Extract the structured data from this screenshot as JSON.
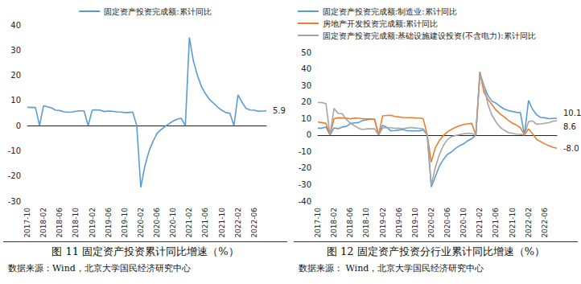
{
  "chart_data": [
    {
      "type": "line",
      "title": "图 11  固定资产投资累计同比增速（%）",
      "source": "数据来源：Wind，北京大学国民经济研究中心",
      "categories": [
        "2017-10",
        null,
        null,
        null,
        "2018-02",
        null,
        null,
        null,
        "2018-06",
        null,
        null,
        null,
        "2018-10",
        null,
        null,
        null,
        "2019-02",
        null,
        null,
        null,
        "2019-06",
        null,
        null,
        null,
        "2019-10",
        null,
        null,
        null,
        "2020-02",
        null,
        null,
        null,
        "2020-06",
        null,
        null,
        null,
        "2020-10",
        null,
        null,
        null,
        "2021-02",
        null,
        null,
        null,
        "2021-06",
        null,
        null,
        null,
        "2021-10",
        null,
        null,
        null,
        "2022-02",
        null,
        null,
        null,
        "2022-06",
        null,
        null,
        null
      ],
      "series": [
        {
          "name": "固定资产投资完成额:累计同比",
          "color": "#5b9bd5",
          "values": [
            7.3,
            7.2,
            7.2,
            0,
            7.9,
            7.5,
            7.0,
            6.1,
            6.0,
            5.5,
            5.3,
            5.4,
            5.7,
            5.9,
            5.9,
            0,
            6.1,
            6.3,
            6.1,
            5.6,
            5.8,
            5.7,
            5.5,
            5.4,
            5.2,
            5.2,
            5.4,
            0,
            -24.5,
            -16.1,
            -10.3,
            -6.3,
            -3.1,
            -1.6,
            -0.3,
            0.8,
            1.8,
            2.6,
            2.9,
            0,
            35.0,
            25.6,
            19.9,
            15.4,
            12.6,
            10.3,
            8.9,
            7.3,
            6.1,
            5.2,
            4.9,
            0,
            12.2,
            9.3,
            6.8,
            6.2,
            6.1,
            5.7,
            5.8,
            5.9
          ],
          "value_labels": [
            null,
            null,
            null,
            null,
            null,
            null,
            null,
            null,
            null,
            null,
            null,
            null,
            null,
            null,
            null,
            null,
            null,
            null,
            null,
            null,
            null,
            null,
            null,
            null,
            null,
            null,
            null,
            null,
            null,
            null,
            null,
            null,
            null,
            null,
            null,
            null,
            null,
            null,
            null,
            null,
            null,
            null,
            null,
            null,
            null,
            null,
            null,
            null,
            null,
            null,
            null,
            null,
            null,
            null,
            null,
            null,
            null,
            null,
            null,
            "5.9"
          ]
        }
      ],
      "ylim": [
        -30,
        40
      ],
      "yticks": [
        -30,
        -20,
        -10,
        0,
        10,
        20,
        30,
        40
      ],
      "grid": false,
      "legend": "top"
    },
    {
      "type": "line",
      "title": "图 12  固定资产投资分行业累计同比增速（%）",
      "source": "数据来源：  Wind，北京大学国民经济研究中心",
      "categories": [
        "2017-10",
        null,
        null,
        null,
        "2018-02",
        null,
        null,
        null,
        "2018-06",
        null,
        null,
        null,
        "2018-10",
        null,
        null,
        null,
        "2019-02",
        null,
        null,
        null,
        "2019-06",
        null,
        null,
        null,
        "2019-10",
        null,
        null,
        null,
        "2020-02",
        null,
        null,
        null,
        "2020-06",
        null,
        null,
        null,
        "2020-10",
        null,
        null,
        null,
        "2021-02",
        null,
        null,
        null,
        "2021-06",
        null,
        null,
        null,
        "2021-10",
        null,
        null,
        null,
        "2022-02",
        null,
        null,
        null,
        "2022-06",
        null,
        null,
        null
      ],
      "series": [
        {
          "name": "固定资产投资完成额:制造业:累计同比",
          "color": "#5b9bd5",
          "values": [
            4.1,
            4.1,
            4.8,
            0,
            4.3,
            3.8,
            4.8,
            5.2,
            6.8,
            7.3,
            7.5,
            8.7,
            9.1,
            9.5,
            9.5,
            0,
            5.9,
            4.6,
            2.5,
            2.7,
            3.0,
            3.3,
            2.6,
            2.5,
            2.6,
            2.5,
            3.1,
            0,
            -31.5,
            -25.2,
            -18.8,
            -14.8,
            -11.7,
            -10.2,
            -8.1,
            -6.5,
            -5.3,
            -3.5,
            -2.2,
            0,
            37.3,
            29.8,
            23.8,
            20.4,
            19.2,
            17.3,
            15.7,
            14.8,
            14.2,
            13.7,
            13.5,
            0,
            20.9,
            15.6,
            12.2,
            10.6,
            10.4,
            9.9,
            10.0,
            10.1
          ],
          "value_labels": [
            null,
            null,
            null,
            null,
            null,
            null,
            null,
            null,
            null,
            null,
            null,
            null,
            null,
            null,
            null,
            null,
            null,
            null,
            null,
            null,
            null,
            null,
            null,
            null,
            null,
            null,
            null,
            null,
            null,
            null,
            null,
            null,
            null,
            null,
            null,
            null,
            null,
            null,
            null,
            null,
            null,
            null,
            null,
            null,
            null,
            null,
            null,
            null,
            null,
            null,
            null,
            null,
            null,
            null,
            null,
            null,
            null,
            null,
            null,
            "10.1"
          ]
        },
        {
          "name": "房地产开发投资完成额:累计同比",
          "color": "#ed7d31",
          "values": [
            7.8,
            7.5,
            7.0,
            0,
            9.9,
            10.4,
            10.3,
            10.2,
            9.7,
            10.2,
            10.1,
            9.9,
            9.7,
            9.7,
            9.5,
            0,
            11.6,
            11.8,
            11.9,
            11.2,
            10.9,
            10.6,
            10.5,
            10.5,
            10.3,
            10.2,
            9.9,
            0,
            -16.3,
            -7.7,
            -3.3,
            -0.3,
            1.9,
            3.4,
            4.6,
            5.6,
            6.3,
            6.8,
            7.0,
            0,
            38.3,
            25.6,
            21.6,
            18.3,
            15.0,
            12.7,
            10.9,
            8.8,
            7.2,
            6.0,
            4.4,
            0,
            3.7,
            0.7,
            -2.7,
            -4.0,
            -5.4,
            -6.4,
            -7.4,
            -8.0
          ],
          "value_labels": [
            null,
            null,
            null,
            null,
            null,
            null,
            null,
            null,
            null,
            null,
            null,
            null,
            null,
            null,
            null,
            null,
            null,
            null,
            null,
            null,
            null,
            null,
            null,
            null,
            null,
            null,
            null,
            null,
            null,
            null,
            null,
            null,
            null,
            null,
            null,
            null,
            null,
            null,
            null,
            null,
            null,
            null,
            null,
            null,
            null,
            null,
            null,
            null,
            null,
            null,
            null,
            null,
            null,
            null,
            null,
            null,
            null,
            null,
            null,
            "-8.0"
          ]
        },
        {
          "name": "固定资产投资完成额:基础设施建设投资(不含电力):累计同比",
          "color": "#a5a5a5",
          "values": [
            19.6,
            19.6,
            19.0,
            0,
            16.1,
            13.0,
            12.9,
            9.4,
            7.3,
            5.7,
            4.2,
            3.3,
            3.7,
            3.7,
            3.8,
            0,
            4.3,
            4.4,
            4.4,
            4.0,
            4.1,
            3.8,
            4.2,
            4.5,
            4.2,
            4.0,
            3.8,
            0,
            -30.3,
            -19.7,
            -11.8,
            -6.3,
            -2.7,
            -1.0,
            -0.3,
            0.2,
            0.7,
            1.0,
            0.9,
            0,
            36.6,
            29.7,
            18.4,
            11.8,
            7.8,
            4.6,
            2.9,
            1.5,
            1.0,
            0.5,
            0.4,
            0,
            8.1,
            8.5,
            6.5,
            6.7,
            7.1,
            7.4,
            8.3,
            8.6
          ],
          "value_labels": [
            null,
            null,
            null,
            null,
            null,
            null,
            null,
            null,
            null,
            null,
            null,
            null,
            null,
            null,
            null,
            null,
            null,
            null,
            null,
            null,
            null,
            null,
            null,
            null,
            null,
            null,
            null,
            null,
            null,
            null,
            null,
            null,
            null,
            null,
            null,
            null,
            null,
            null,
            null,
            null,
            null,
            null,
            null,
            null,
            null,
            null,
            null,
            null,
            null,
            null,
            null,
            null,
            null,
            null,
            null,
            null,
            null,
            null,
            null,
            "8.6"
          ]
        }
      ],
      "ylim": [
        -40,
        50
      ],
      "yticks": [
        -40,
        -30,
        -20,
        -10,
        0,
        10,
        20,
        30,
        40,
        50
      ],
      "grid": false,
      "legend": "top-left"
    }
  ]
}
